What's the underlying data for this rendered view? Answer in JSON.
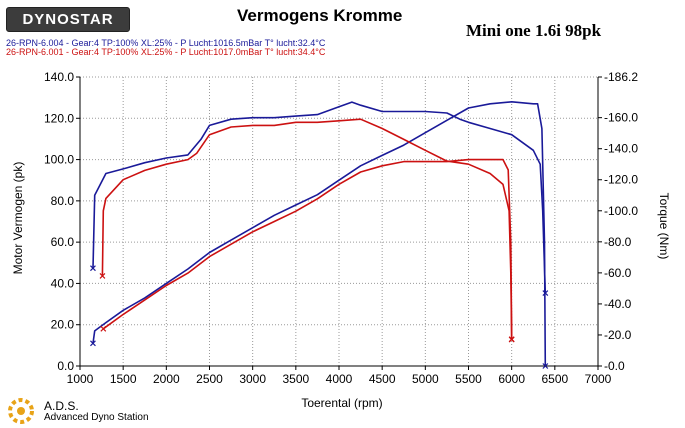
{
  "header": {
    "logo_text": "DYNOSTAR",
    "title": "Vermogens Kromme",
    "subtitle": "Mini one 1.6i 98pk",
    "runs": [
      {
        "label": "26-RPN-6.004 - Gear:4 TP:100% XL:25%   - P Lucht:1016.5mBar T° lucht:32.4°C",
        "color": "#1a1a99"
      },
      {
        "label": "26-RPN-6.001 - Gear:4 TP:100% XL:25%   - P Lucht:1017.0mBar T° lucht:34.4°C",
        "color": "#cc1111"
      }
    ]
  },
  "footer": {
    "name": "A.D.S.",
    "description": "Advanced Dyno Station"
  },
  "chart_data": {
    "type": "line",
    "title": "Vermogens Kromme",
    "xlabel": "Toerental (rpm)",
    "ylabel": "Motor Vermogen (pk)",
    "y2label": "Torque (Nm)",
    "xlim": [
      1000,
      7000
    ],
    "ylim": [
      0,
      140
    ],
    "y2lim": [
      0,
      186.2
    ],
    "x_ticks": [
      1000,
      1500,
      2000,
      2500,
      3000,
      3500,
      4000,
      4500,
      5000,
      5500,
      6000,
      6500,
      7000
    ],
    "x_tick_labels": [
      "1000",
      "1500",
      "2000",
      "2500",
      "3000",
      "3500",
      "4000",
      "4500",
      "5000",
      "5500",
      "6000",
      "6500",
      "7000"
    ],
    "y_ticks": [
      0,
      20,
      40,
      60,
      80,
      100,
      120,
      140
    ],
    "y_tick_labels": [
      "0.0",
      "20.0",
      "40.0",
      "60.0",
      "80.0",
      "100.0",
      "120.0",
      "140.0"
    ],
    "y2_ticks": [
      0,
      20,
      40,
      60,
      80,
      100,
      120,
      140,
      160,
      186.2
    ],
    "y2_tick_labels": [
      "0.0",
      "20.0",
      "40.0",
      "60.0",
      "80.0",
      "100.0",
      "120.0",
      "140.0",
      "160.0",
      "186.2"
    ],
    "grid": true,
    "series": [
      {
        "run": "26-RPN-6.004",
        "quantity": "power",
        "axis": "left",
        "color": "#1a1a99",
        "points": [
          [
            1150,
            11
          ],
          [
            1170,
            17
          ],
          [
            1300,
            21
          ],
          [
            1500,
            27
          ],
          [
            1750,
            33
          ],
          [
            2000,
            40
          ],
          [
            2250,
            47
          ],
          [
            2500,
            55
          ],
          [
            2750,
            61
          ],
          [
            3000,
            67
          ],
          [
            3250,
            73
          ],
          [
            3500,
            78
          ],
          [
            3750,
            83
          ],
          [
            4000,
            90
          ],
          [
            4250,
            97
          ],
          [
            4500,
            102
          ],
          [
            4750,
            107
          ],
          [
            5000,
            113
          ],
          [
            5250,
            119
          ],
          [
            5500,
            125
          ],
          [
            5750,
            127
          ],
          [
            6000,
            128
          ],
          [
            6250,
            127
          ],
          [
            6300,
            127
          ],
          [
            6350,
            115
          ],
          [
            6380,
            60
          ],
          [
            6390,
            0
          ]
        ]
      },
      {
        "run": "26-RPN-6.004",
        "quantity": "torque",
        "axis": "right",
        "color": "#1a1a99",
        "points": [
          [
            1150,
            63
          ],
          [
            1170,
            110
          ],
          [
            1300,
            124
          ],
          [
            1500,
            127
          ],
          [
            1750,
            131
          ],
          [
            2000,
            134
          ],
          [
            2250,
            136
          ],
          [
            2400,
            146
          ],
          [
            2500,
            155
          ],
          [
            2750,
            159
          ],
          [
            3000,
            160
          ],
          [
            3250,
            160
          ],
          [
            3500,
            161
          ],
          [
            3750,
            162
          ],
          [
            4000,
            167
          ],
          [
            4150,
            170
          ],
          [
            4250,
            168
          ],
          [
            4500,
            164
          ],
          [
            4750,
            164
          ],
          [
            5000,
            164
          ],
          [
            5250,
            163
          ],
          [
            5400,
            159
          ],
          [
            5500,
            157
          ],
          [
            5750,
            153
          ],
          [
            6000,
            149
          ],
          [
            6250,
            139
          ],
          [
            6330,
            130
          ],
          [
            6360,
            100
          ],
          [
            6390,
            47
          ]
        ]
      },
      {
        "run": "26-RPN-6.001",
        "quantity": "power",
        "axis": "left",
        "color": "#cc1111",
        "points": [
          [
            1270,
            18
          ],
          [
            1500,
            25
          ],
          [
            1750,
            32
          ],
          [
            2000,
            39
          ],
          [
            2250,
            45
          ],
          [
            2500,
            53
          ],
          [
            2750,
            59
          ],
          [
            3000,
            65
          ],
          [
            3250,
            70
          ],
          [
            3500,
            75
          ],
          [
            3750,
            81
          ],
          [
            4000,
            88
          ],
          [
            4250,
            94
          ],
          [
            4500,
            97
          ],
          [
            4750,
            99
          ],
          [
            5000,
            99
          ],
          [
            5250,
            99
          ],
          [
            5500,
            100
          ],
          [
            5750,
            100
          ],
          [
            5900,
            100
          ],
          [
            5960,
            95
          ],
          [
            5990,
            60
          ],
          [
            6000,
            13
          ]
        ]
      },
      {
        "run": "26-RPN-6.001",
        "quantity": "torque",
        "axis": "right",
        "color": "#cc1111",
        "points": [
          [
            1260,
            58
          ],
          [
            1270,
            100
          ],
          [
            1300,
            108
          ],
          [
            1500,
            120
          ],
          [
            1750,
            126
          ],
          [
            2000,
            130
          ],
          [
            2250,
            133
          ],
          [
            2350,
            137
          ],
          [
            2500,
            149
          ],
          [
            2750,
            154
          ],
          [
            3000,
            155
          ],
          [
            3250,
            155
          ],
          [
            3500,
            157
          ],
          [
            3750,
            157
          ],
          [
            4000,
            158
          ],
          [
            4250,
            159
          ],
          [
            4500,
            153
          ],
          [
            4750,
            146
          ],
          [
            5000,
            139
          ],
          [
            5250,
            132
          ],
          [
            5500,
            130
          ],
          [
            5750,
            124
          ],
          [
            5900,
            117
          ],
          [
            5970,
            100
          ],
          [
            5990,
            60
          ],
          [
            6000,
            17
          ]
        ]
      }
    ]
  }
}
